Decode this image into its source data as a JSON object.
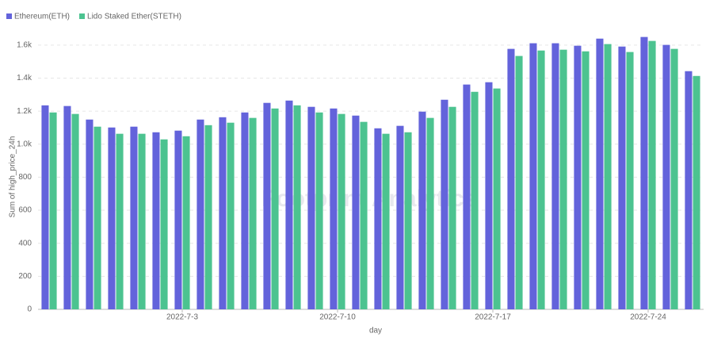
{
  "chart_data": {
    "type": "bar",
    "categories": [
      null,
      null,
      null,
      null,
      null,
      null,
      "2022-7-3",
      null,
      null,
      null,
      null,
      null,
      null,
      "2022-7-10",
      null,
      null,
      null,
      null,
      null,
      null,
      "2022-7-17",
      null,
      null,
      null,
      null,
      null,
      null,
      "2022-7-24",
      null,
      null
    ],
    "series": [
      {
        "name": "Ethereum(ETH)",
        "color": "#6363db",
        "values": [
          1235,
          1231,
          1149,
          1101,
          1106,
          1072,
          1082,
          1149,
          1163,
          1192,
          1250,
          1264,
          1226,
          1216,
          1173,
          1096,
          1111,
          1197,
          1269,
          1361,
          1375,
          1577,
          1611,
          1611,
          1596,
          1639,
          1591,
          1649,
          1601,
          1442
        ]
      },
      {
        "name": "Lido Staked Ether(STETH)",
        "color": "#4cc390",
        "values": [
          1192,
          1183,
          1106,
          1063,
          1063,
          1029,
          1048,
          1115,
          1130,
          1159,
          1216,
          1235,
          1192,
          1183,
          1135,
          1063,
          1072,
          1159,
          1226,
          1317,
          1337,
          1534,
          1567,
          1572,
          1562,
          1606,
          1558,
          1625,
          1577,
          1413
        ]
      }
    ],
    "ylim": [
      0,
      1700
    ],
    "yticks": [
      0,
      200,
      400,
      600,
      800,
      {
        "value": 1000,
        "label": "1.0k"
      },
      {
        "value": 1200,
        "label": "1.2k"
      },
      {
        "value": 1400,
        "label": "1.4k"
      },
      {
        "value": 1600,
        "label": "1.6k"
      }
    ],
    "y_label": "Sum of high_price_24h",
    "x_label": "day",
    "watermark": "Footprint Analytics",
    "grid": true,
    "legend": "top-left"
  }
}
